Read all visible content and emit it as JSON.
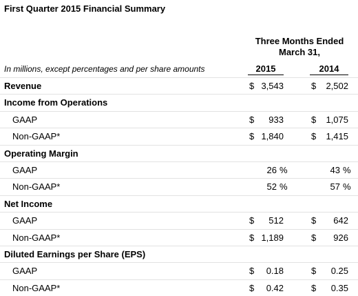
{
  "title": "First Quarter 2015 Financial Summary",
  "header": {
    "period": "Three Months Ended",
    "date": "March 31,",
    "note": "In millions, except percentages and per share amounts",
    "years": [
      "2015",
      "2014"
    ]
  },
  "sections": [
    {
      "label": "Revenue",
      "values": [
        {
          "currency": "$",
          "amount": "3,543"
        },
        {
          "currency": "$",
          "amount": "2,502"
        }
      ],
      "items": []
    },
    {
      "label": "Income from Operations",
      "items": [
        {
          "label": "GAAP",
          "values": [
            {
              "currency": "$",
              "amount": "933"
            },
            {
              "currency": "$",
              "amount": "1,075"
            }
          ]
        },
        {
          "label": "Non-GAAP*",
          "values": [
            {
              "currency": "$",
              "amount": "1,840"
            },
            {
              "currency": "$",
              "amount": "1,415"
            }
          ]
        }
      ]
    },
    {
      "label": "Operating Margin",
      "items": [
        {
          "label": "GAAP",
          "values": [
            {
              "amount": "26",
              "unit": "%"
            },
            {
              "amount": "43",
              "unit": "%"
            }
          ]
        },
        {
          "label": "Non-GAAP*",
          "values": [
            {
              "amount": "52",
              "unit": "%"
            },
            {
              "amount": "57",
              "unit": "%"
            }
          ]
        }
      ]
    },
    {
      "label": "Net Income",
      "items": [
        {
          "label": "GAAP",
          "values": [
            {
              "currency": "$",
              "amount": "512"
            },
            {
              "currency": "$",
              "amount": "642"
            }
          ]
        },
        {
          "label": "Non-GAAP*",
          "values": [
            {
              "currency": "$",
              "amount": "1,189"
            },
            {
              "currency": "$",
              "amount": "926"
            }
          ]
        }
      ]
    },
    {
      "label": "Diluted Earnings per Share (EPS)",
      "items": [
        {
          "label": "GAAP",
          "values": [
            {
              "currency": "$",
              "amount": "0.18"
            },
            {
              "currency": "$",
              "amount": "0.25"
            }
          ]
        },
        {
          "label": "Non-GAAP*",
          "values": [
            {
              "currency": "$",
              "amount": "0.42"
            },
            {
              "currency": "$",
              "amount": "0.35"
            }
          ]
        }
      ]
    }
  ]
}
